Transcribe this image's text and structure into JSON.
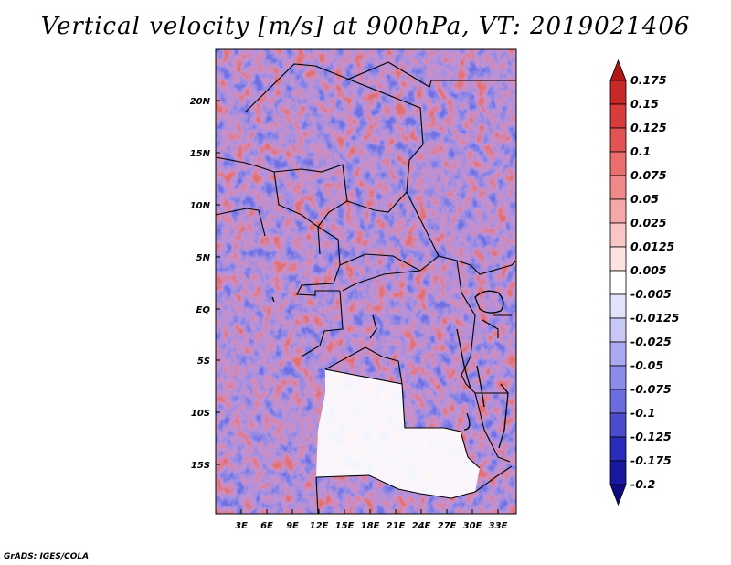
{
  "title": "Vertical velocity [m/s] at 900hPa, VT: 2019021406",
  "footer": "GrADS: IGES/COLA",
  "lat_labels": [
    "20N",
    "15N",
    "10N",
    "5N",
    "EQ",
    "5S",
    "10S",
    "15S"
  ],
  "lon_labels": [
    "3E",
    "6E",
    "9E",
    "12E",
    "15E",
    "18E",
    "21E",
    "24E",
    "27E",
    "30E",
    "33E"
  ],
  "colorbar": {
    "labels": [
      "0.175",
      "0.15",
      "0.125",
      "0.1",
      "0.075",
      "0.05",
      "0.025",
      "0.0125",
      "0.005",
      "-0.005",
      "-0.0125",
      "-0.025",
      "-0.05",
      "-0.075",
      "-0.1",
      "-0.125",
      "-0.175",
      "-0.2"
    ],
    "colors": [
      "#b01818",
      "#c82828",
      "#d83c3c",
      "#e25454",
      "#ea6e6e",
      "#f08a8a",
      "#f5a8a8",
      "#f9c6c6",
      "#fde2e2",
      "#ffffff",
      "#e2e2fb",
      "#c8c8f6",
      "#aaaaf0",
      "#8c8ce8",
      "#6c6cdc",
      "#4c4cd0",
      "#2c2cbc",
      "#1818a0",
      "#0c0c80"
    ]
  },
  "colors": {
    "accent_red": "#e05050",
    "accent_blue": "#5050e0"
  }
}
